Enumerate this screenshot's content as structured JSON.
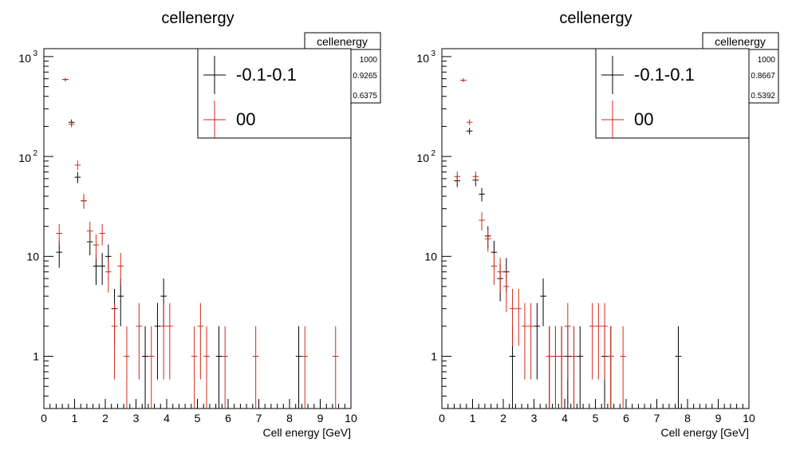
{
  "chart_data": [
    {
      "type": "scatter",
      "title": "cellenergy",
      "xlabel": "Cell energy [GeV]",
      "ylabel": "",
      "xlim": [
        0,
        10
      ],
      "ylim": [
        0.3,
        1200
      ],
      "log_y": true,
      "grid": false,
      "x_ticks": [
        0,
        1,
        2,
        3,
        4,
        5,
        6,
        7,
        8,
        9,
        10
      ],
      "y_ticks": [
        {
          "value": 1,
          "label": "1"
        },
        {
          "value": 10,
          "label": "10"
        },
        {
          "value": 100,
          "label": "10",
          "exp": "2"
        },
        {
          "value": 1000,
          "label": "10",
          "exp": "3"
        }
      ],
      "stats_box": {
        "title": "cellenergy",
        "values": [
          "1000",
          "0.9265",
          "0.6375"
        ]
      },
      "legend": {
        "placement": "top-right"
      },
      "series": [
        {
          "name": "-0.1-0.1",
          "color": "#000000",
          "x": [
            0.5,
            0.7,
            0.9,
            1.1,
            1.3,
            1.5,
            1.7,
            1.9,
            2.1,
            2.3,
            2.5,
            3.3,
            3.7,
            3.9,
            5.7,
            8.3
          ],
          "y": [
            11,
            590,
            220,
            62,
            36,
            14,
            8,
            8,
            10,
            3,
            4,
            1,
            2,
            4,
            1,
            1
          ]
        },
        {
          "name": "00",
          "color": "#d42a1c",
          "x": [
            0.5,
            0.7,
            0.9,
            1.1,
            1.3,
            1.5,
            1.7,
            1.9,
            2.1,
            2.3,
            2.5,
            2.7,
            3.1,
            3.5,
            3.9,
            4.1,
            4.9,
            5.1,
            5.3,
            5.9,
            6.9,
            8.5,
            9.5
          ],
          "y": [
            17,
            590,
            210,
            82,
            36,
            18,
            13,
            17,
            7,
            2,
            8,
            1,
            2,
            1,
            2,
            2,
            1,
            2,
            1,
            1,
            1,
            1,
            1
          ]
        }
      ]
    },
    {
      "type": "scatter",
      "title": "cellenergy",
      "xlabel": "Cell energy [GeV]",
      "ylabel": "",
      "xlim": [
        0,
        10
      ],
      "ylim": [
        0.3,
        1200
      ],
      "log_y": true,
      "grid": false,
      "x_ticks": [
        0,
        1,
        2,
        3,
        4,
        5,
        6,
        7,
        8,
        9,
        10
      ],
      "y_ticks": [
        {
          "value": 1,
          "label": "1"
        },
        {
          "value": 10,
          "label": "10"
        },
        {
          "value": 100,
          "label": "10",
          "exp": "2"
        },
        {
          "value": 1000,
          "label": "10",
          "exp": "3"
        }
      ],
      "stats_box": {
        "title": "cellenergy",
        "values": [
          "1000",
          "0.8667",
          "0.5392"
        ]
      },
      "legend": {
        "placement": "top-right"
      },
      "series": [
        {
          "name": "-0.1-0.1",
          "color": "#000000",
          "x": [
            0.5,
            0.7,
            0.9,
            1.1,
            1.3,
            1.5,
            1.7,
            1.9,
            2.1,
            2.3,
            3.1,
            3.3,
            3.5,
            3.7,
            3.9,
            4.1,
            4.3,
            4.5,
            5.3,
            5.5,
            7.7
          ],
          "y": [
            57,
            580,
            180,
            58,
            42,
            16,
            11,
            6,
            7,
            1,
            2,
            4,
            1,
            1,
            1,
            1,
            1,
            1,
            1,
            1,
            1
          ]
        },
        {
          "name": "00",
          "color": "#d42a1c",
          "x": [
            0.5,
            0.7,
            0.9,
            1.1,
            1.3,
            1.5,
            1.7,
            1.9,
            2.1,
            2.3,
            2.5,
            2.7,
            2.9,
            3.5,
            3.7,
            3.9,
            4.1,
            4.3,
            4.9,
            5.1,
            5.3,
            5.5,
            5.9
          ],
          "y": [
            63,
            580,
            220,
            63,
            23,
            15,
            8,
            7,
            5,
            3,
            3,
            2,
            2,
            1,
            1,
            1,
            2,
            1,
            2,
            2,
            2,
            1,
            1
          ]
        }
      ]
    }
  ]
}
